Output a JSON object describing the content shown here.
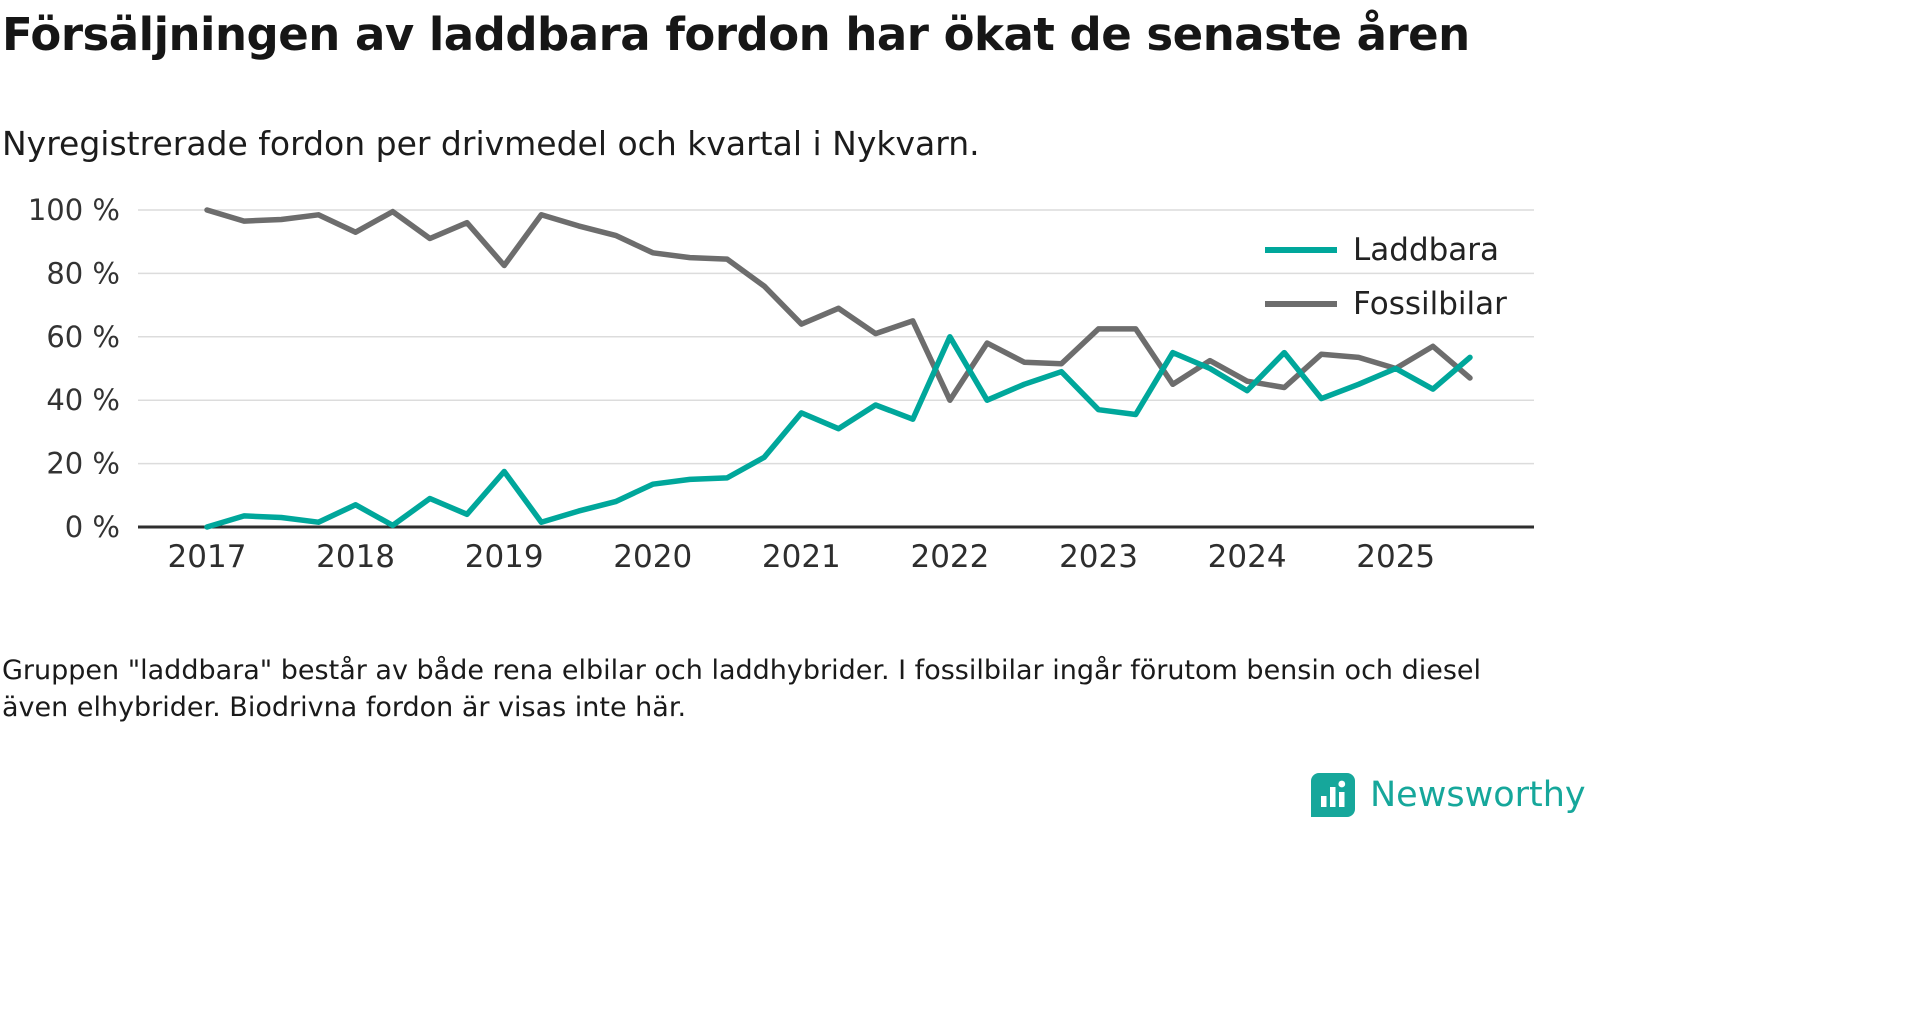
{
  "header": {
    "title": "Försäljningen av laddbara fordon har ökat de senaste åren",
    "subtitle": "Nyregistrerade fordon per drivmedel och kvartal i Nykvarn."
  },
  "chart_data": {
    "type": "line",
    "title": "Försäljningen av laddbara fordon har ökat de senaste åren",
    "subtitle": "Nyregistrerade fordon per drivmedel och kvartal i Nykvarn.",
    "x_unit": "quarter",
    "x": [
      "2017Q1",
      "2017Q2",
      "2017Q3",
      "2017Q4",
      "2018Q1",
      "2018Q2",
      "2018Q3",
      "2018Q4",
      "2019Q1",
      "2019Q2",
      "2019Q3",
      "2019Q4",
      "2020Q1",
      "2020Q2",
      "2020Q3",
      "2020Q4",
      "2021Q1",
      "2021Q2",
      "2021Q3",
      "2021Q4",
      "2022Q1",
      "2022Q2",
      "2022Q3",
      "2022Q4",
      "2023Q1",
      "2023Q2",
      "2023Q3",
      "2023Q4",
      "2024Q1",
      "2024Q2",
      "2024Q3",
      "2024Q4",
      "2025Q1",
      "2025Q2",
      "2025Q3"
    ],
    "series": [
      {
        "name": "Laddbara",
        "color": "#00a79b",
        "values": [
          0,
          3.5,
          3,
          1.5,
          7,
          0.5,
          9,
          4,
          17.5,
          1.5,
          5,
          8,
          13.5,
          15,
          15.5,
          22,
          36,
          31,
          38.5,
          34,
          60,
          40,
          45,
          49,
          37,
          35.5,
          55,
          50,
          43,
          55,
          40.5,
          45,
          50,
          43.5,
          53.5
        ]
      },
      {
        "name": "Fossilbilar",
        "color": "#6d6d6d",
        "values": [
          100,
          96.5,
          97,
          98.5,
          93,
          99.5,
          91,
          96,
          82.5,
          98.5,
          95,
          92,
          86.5,
          85,
          84.5,
          76,
          64,
          69,
          61,
          65,
          40,
          58,
          52,
          51.5,
          62.5,
          62.5,
          45,
          52.5,
          46,
          44,
          54.5,
          53.5,
          50,
          57,
          47
        ]
      }
    ],
    "ylim": [
      0,
      100
    ],
    "yticks": [
      0,
      20,
      40,
      60,
      80,
      100
    ],
    "ytick_labels": [
      "0 %",
      "20 %",
      "40 %",
      "60 %",
      "80 %",
      "100 %"
    ],
    "xticks": [
      2017,
      2018,
      2019,
      2020,
      2021,
      2022,
      2023,
      2024,
      2025
    ],
    "grid": "horizontal",
    "legend_position": "top-right"
  },
  "footer": {
    "note": "Gruppen \"laddbara\" består av både rena elbilar och laddhybrider. I fossilbilar ingår förutom bensin och diesel även elhybrider. Biodrivna fordon är visas inte här.",
    "brand": "Newsworthy"
  },
  "colors": {
    "accent_teal": "#00a79b",
    "line_gray": "#6d6d6d",
    "grid_gray": "#dcdcdc",
    "axis_dark": "#2e2e2e"
  }
}
